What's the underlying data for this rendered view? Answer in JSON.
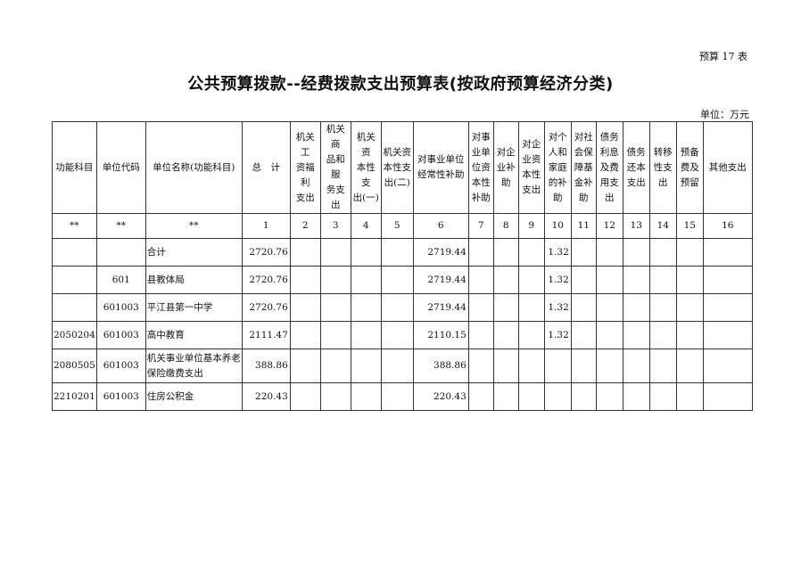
{
  "form_tag": "预算 17 表",
  "title": "公共预算拨款--经费拨款支出预算表(按政府预算经济分类)",
  "unit": "单位：万元",
  "columns": [
    "功能科目",
    "单位代码",
    "单位名称(功能科目)",
    "总　计",
    "机关工\n资福利\n支出",
    "机关商\n品和服\n务支出",
    "机关资\n本性支\n出(一)",
    "机关资\n本性支\n出(二)",
    "对事业单位\n经常性补助",
    "对事\n业单\n位资\n本性\n补助",
    "对企\n业补\n助",
    "对企\n业资\n本性\n支出",
    "对个\n人和\n家庭\n的补\n助",
    "对社\n会保\n障基\n金补\n助",
    "债务\n利息\n及费\n用支\n出",
    "债务\n还本\n支出",
    "转移\n性支\n出",
    "预备\n费及\n预留",
    "其他支出"
  ],
  "index_row": [
    "**",
    "**",
    "**",
    "1",
    "2",
    "3",
    "4",
    "5",
    "6",
    "7",
    "8",
    "9",
    "10",
    "11",
    "12",
    "13",
    "14",
    "15",
    "16"
  ],
  "rows": [
    {
      "func": "",
      "code": "",
      "name": "合计",
      "total": "2720.76",
      "c6": "2719.44",
      "c10": "1.32"
    },
    {
      "func": "",
      "code": "601",
      "name": "县教体局",
      "total": "2720.76",
      "c6": "2719.44",
      "c10": "1.32"
    },
    {
      "func": "",
      "code": "601003",
      "name": "平江县第一中学",
      "total": "2720.76",
      "c6": "2719.44",
      "c10": "1.32"
    },
    {
      "func": "2050204",
      "code": "601003",
      "name": "高中教育",
      "total": "2111.47",
      "c6": "2110.15",
      "c10": "1.32"
    },
    {
      "func": "2080505",
      "code": "601003",
      "name": "机关事业单位基本养老保险缴费支出",
      "total": "388.86",
      "c6": "388.86",
      "c10": ""
    },
    {
      "func": "2210201",
      "code": "601003",
      "name": "住房公积金",
      "total": "220.43",
      "c6": "220.43",
      "c10": ""
    }
  ]
}
